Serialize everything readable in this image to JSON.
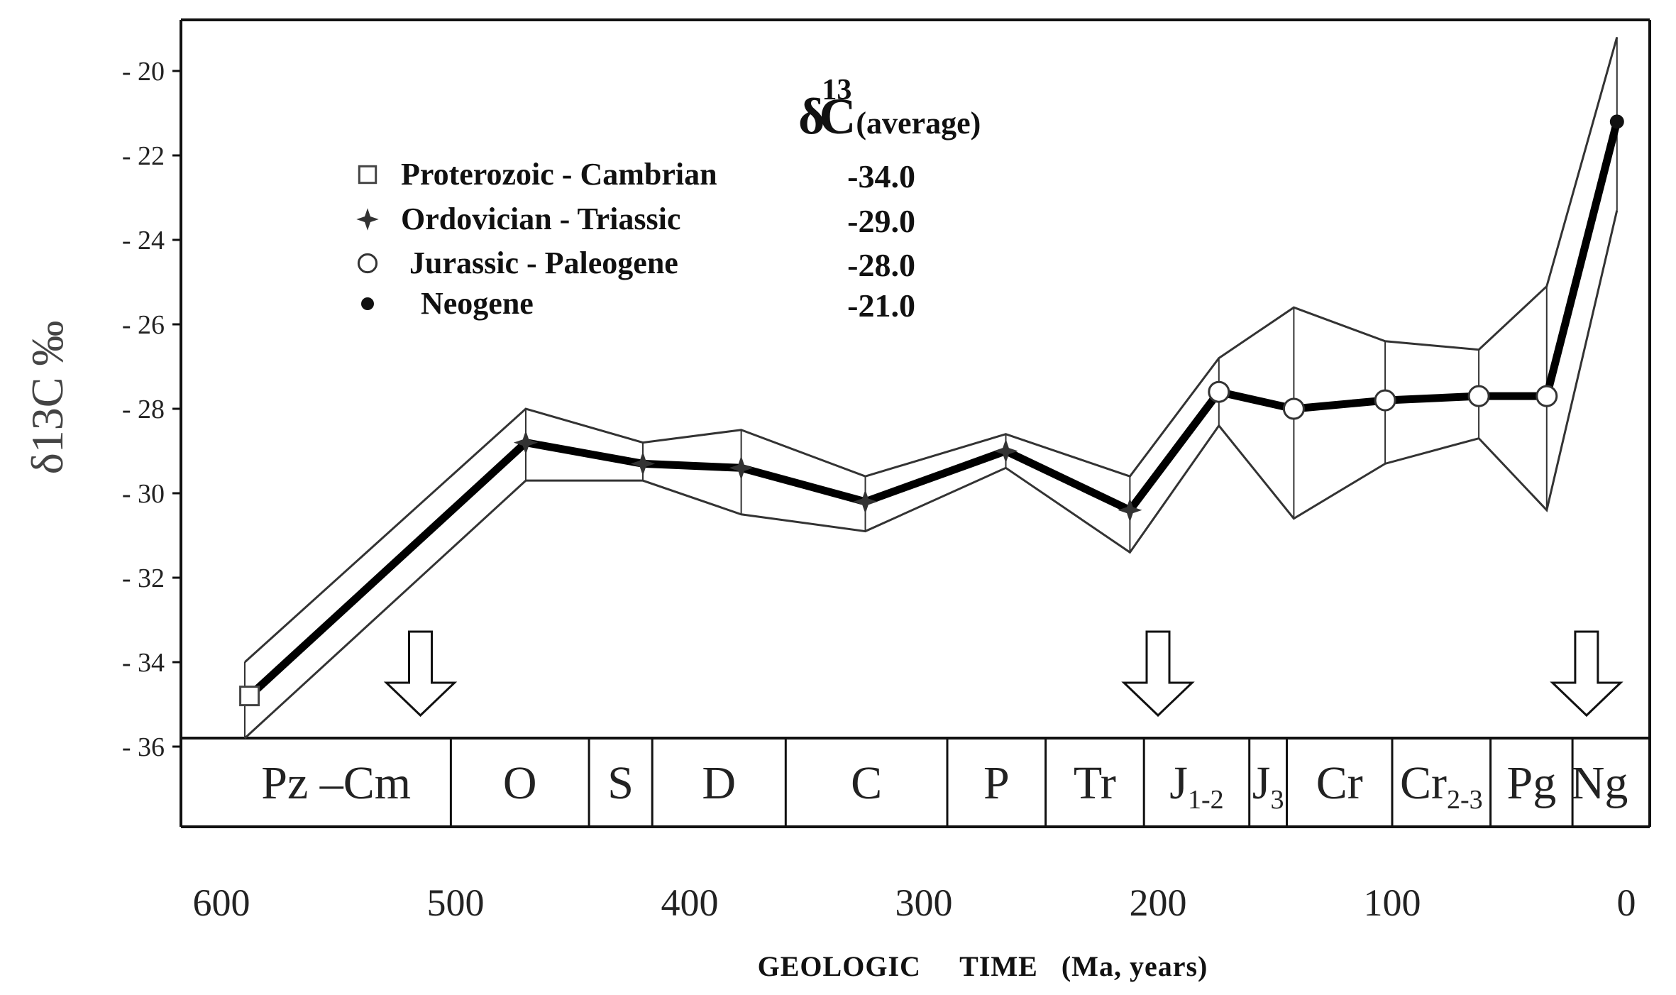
{
  "colors": {
    "line": "#000000",
    "envelope": "#333333",
    "frame": "#111111",
    "text": "#222222"
  },
  "chart_data": {
    "type": "line",
    "title": {
      "main": "δ",
      "sup": "13",
      "c": "C",
      "sub": "(average)"
    },
    "ylabel": "δ13C ‰",
    "xlabel": "GEOLOGIC     TIME   (Ma, years)",
    "xlim": [
      600,
      0
    ],
    "ylim": [
      -36,
      -19
    ],
    "x_ticks": [
      600,
      500,
      400,
      300,
      200,
      100,
      0
    ],
    "y_ticks": [
      -20,
      -22,
      -24,
      -26,
      -28,
      -30,
      -32,
      -34,
      -36
    ],
    "series": [
      {
        "role": "mean",
        "x": [
          588,
          470,
          420,
          378,
          325,
          265,
          212,
          174,
          142,
          103,
          63,
          34,
          4
        ],
        "y": [
          -34.8,
          -28.8,
          -29.3,
          -29.4,
          -30.2,
          -29.0,
          -30.4,
          -27.6,
          -28.0,
          -27.8,
          -27.7,
          -27.7,
          -21.2
        ],
        "markers": [
          "square",
          "star",
          "star",
          "star",
          "star",
          "star",
          "star",
          "circle",
          "circle",
          "circle",
          "circle",
          "circle",
          "dot"
        ]
      },
      {
        "role": "upper",
        "x": [
          590,
          470,
          420,
          378,
          325,
          265,
          212,
          174,
          142,
          103,
          63,
          34,
          4
        ],
        "y": [
          -34.0,
          -28.0,
          -28.8,
          -28.5,
          -29.6,
          -28.6,
          -29.6,
          -26.8,
          -25.6,
          -26.4,
          -26.6,
          -25.1,
          -19.2
        ]
      },
      {
        "role": "lower",
        "x": [
          590,
          470,
          420,
          378,
          325,
          265,
          212,
          174,
          142,
          103,
          63,
          34,
          4
        ],
        "y": [
          -35.8,
          -29.7,
          -29.7,
          -30.5,
          -30.9,
          -29.4,
          -31.4,
          -28.4,
          -30.6,
          -29.3,
          -28.7,
          -30.4,
          -23.3
        ]
      }
    ],
    "legend": [
      {
        "marker": "square",
        "label": "Proterozoic  -  Cambrian",
        "value": "-34.0"
      },
      {
        "marker": "star",
        "label": "Ordovician - Triassic",
        "value": "-29.0"
      },
      {
        "marker": "circle",
        "label": "Jurassic - Paleogene",
        "value": "-28.0"
      },
      {
        "marker": "dot",
        "label": "Neogene",
        "value": "-21.0"
      }
    ],
    "arrows_at": [
      515,
      200,
      17
    ],
    "periods": [
      {
        "label": "Pz",
        "dash": true,
        "label2": "Cm",
        "start": 600,
        "end": 502
      },
      {
        "label": "O",
        "start": 502,
        "end": 443
      },
      {
        "label": "S",
        "start": 443,
        "end": 416
      },
      {
        "label": "D",
        "start": 416,
        "end": 359
      },
      {
        "label": "C",
        "start": 359,
        "end": 290
      },
      {
        "label": "P",
        "start": 290,
        "end": 248
      },
      {
        "label": "Tr",
        "start": 248,
        "end": 206
      },
      {
        "label": "J",
        "sub": "1-2",
        "start": 206,
        "end": 161
      },
      {
        "label": "J",
        "sub": "3",
        "start": 161,
        "end": 145
      },
      {
        "label": "Cr",
        "start": 145,
        "end": 100
      },
      {
        "label": "Cr",
        "sub": "2-3",
        "start": 100,
        "end": 58
      },
      {
        "label": "Pg",
        "start": 58,
        "end": 23
      },
      {
        "label": "Ng",
        "start": 23,
        "end": 0
      }
    ]
  }
}
